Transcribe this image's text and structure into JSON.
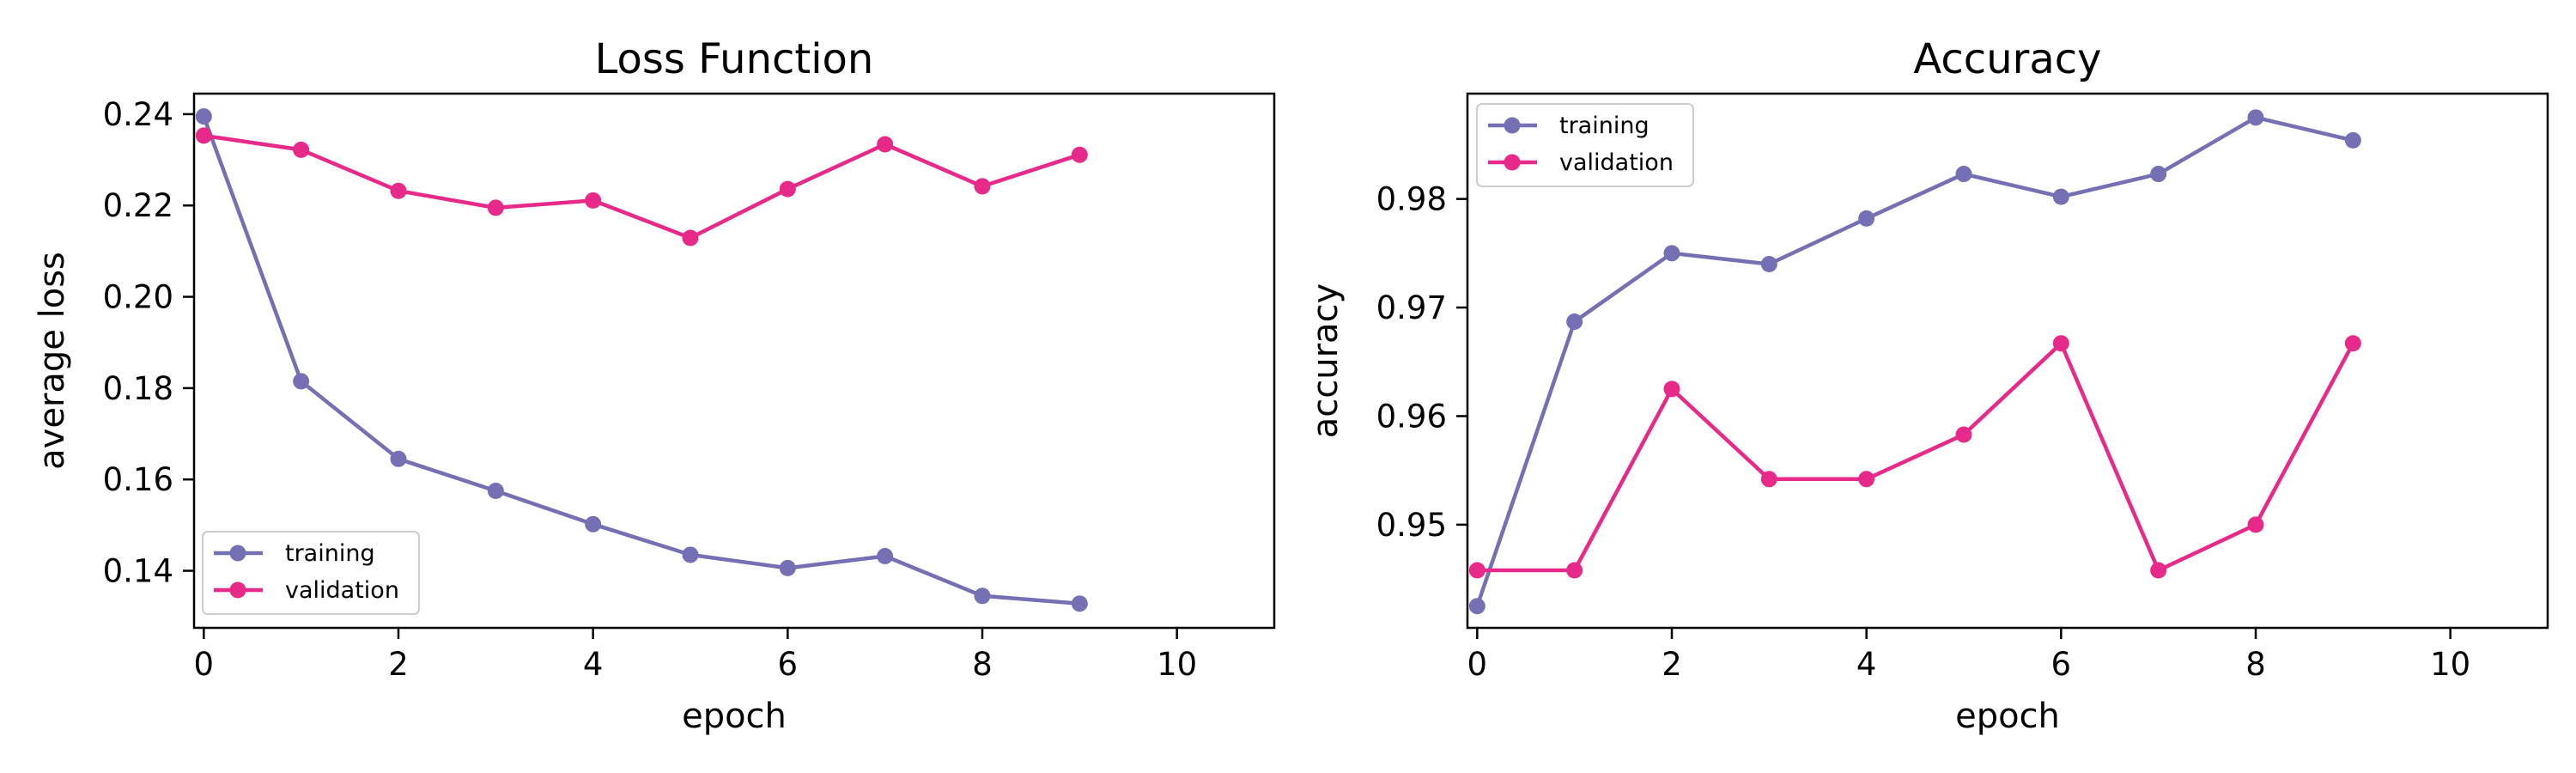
{
  "chart_data": [
    {
      "type": "line",
      "title": "Loss Function",
      "xlabel": "epoch",
      "ylabel": "average loss",
      "xlim": [
        -0.1,
        11
      ],
      "ylim": [
        0.1275,
        0.2445
      ],
      "xticks": [
        0,
        2,
        4,
        6,
        8,
        10
      ],
      "xtick_labels": [
        "0",
        "2",
        "4",
        "6",
        "8",
        "10"
      ],
      "yticks": [
        0.14,
        0.16,
        0.18,
        0.2,
        0.22,
        0.24
      ],
      "ytick_labels": [
        "0.14",
        "0.16",
        "0.18",
        "0.20",
        "0.22",
        "0.24"
      ],
      "grid": false,
      "legend": "lower-left",
      "x": [
        0,
        1,
        2,
        3,
        4,
        5,
        6,
        7,
        8,
        9
      ],
      "series": [
        {
          "name": "training",
          "color": "#7570b3",
          "values": [
            0.2395,
            0.1815,
            0.1645,
            0.1575,
            0.1502,
            0.1435,
            0.1406,
            0.1432,
            0.1345,
            0.1328
          ]
        },
        {
          "name": "validation",
          "color": "#e7298a",
          "values": [
            0.2353,
            0.2322,
            0.2232,
            0.2195,
            0.2211,
            0.2129,
            0.2236,
            0.2334,
            0.2242,
            0.2311
          ]
        }
      ]
    },
    {
      "type": "line",
      "title": "Accuracy",
      "xlabel": "epoch",
      "ylabel": "accuracy",
      "xlim": [
        -0.1,
        11
      ],
      "ylim": [
        0.9405,
        0.9897
      ],
      "xticks": [
        0,
        2,
        4,
        6,
        8,
        10
      ],
      "xtick_labels": [
        "0",
        "2",
        "4",
        "6",
        "8",
        "10"
      ],
      "yticks": [
        0.95,
        0.96,
        0.97,
        0.98
      ],
      "ytick_labels": [
        "0.95",
        "0.96",
        "0.97",
        "0.98"
      ],
      "grid": false,
      "legend": "upper-left",
      "x": [
        0,
        1,
        2,
        3,
        4,
        5,
        6,
        7,
        8,
        9
      ],
      "series": [
        {
          "name": "training",
          "color": "#7570b3",
          "values": [
            0.9425,
            0.9687,
            0.975,
            0.974,
            0.9782,
            0.9823,
            0.9802,
            0.9823,
            0.9875,
            0.9854
          ]
        },
        {
          "name": "validation",
          "color": "#e7298a",
          "values": [
            0.9458,
            0.9458,
            0.9625,
            0.9542,
            0.9542,
            0.9583,
            0.9667,
            0.9458,
            0.95,
            0.9667
          ]
        }
      ]
    }
  ]
}
